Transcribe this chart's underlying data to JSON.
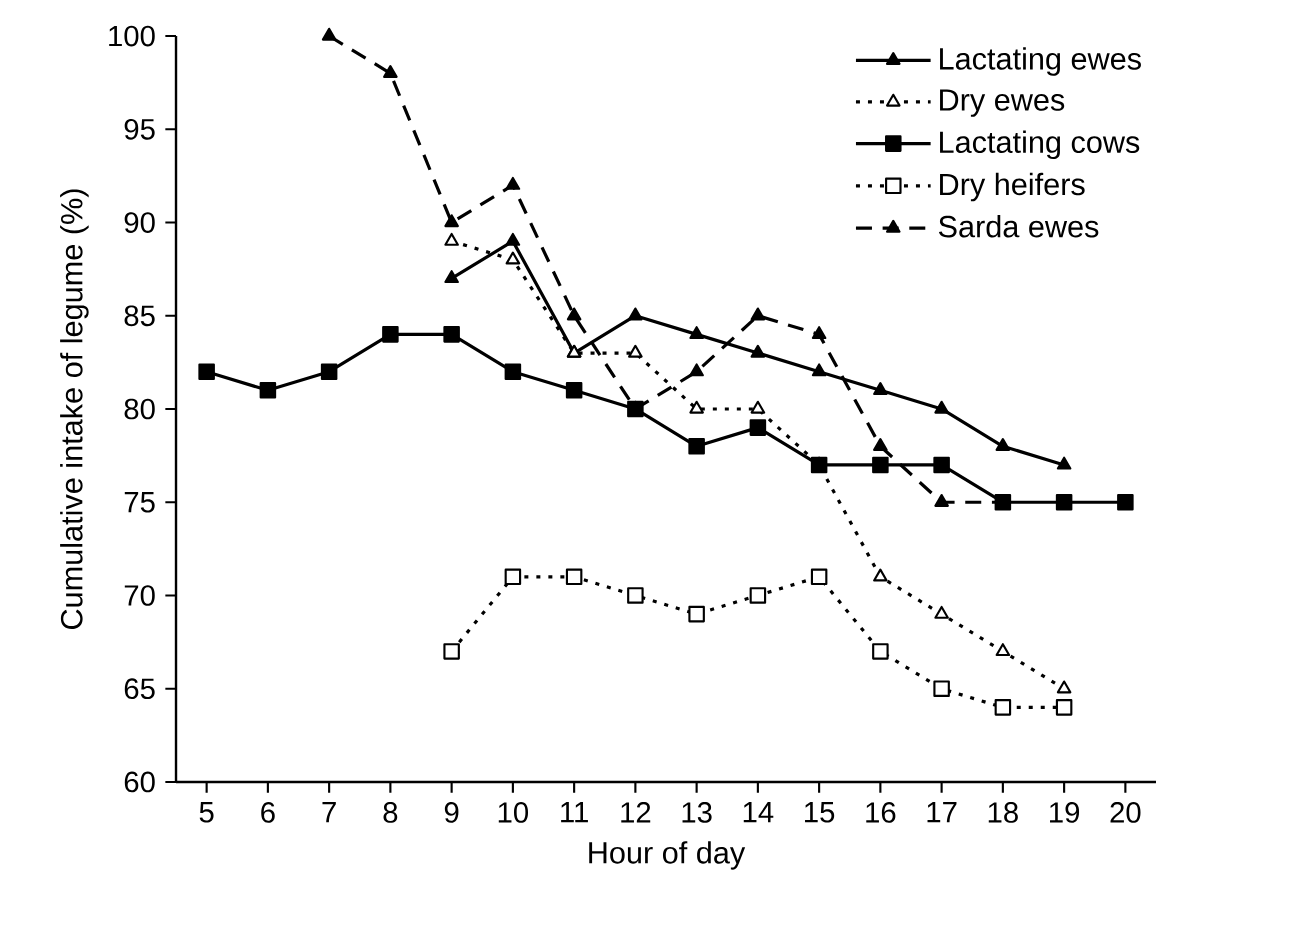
{
  "chart_data": {
    "type": "line",
    "xlabel": "Hour of day",
    "ylabel": "Cumulative intake of legume (%)",
    "categories": [
      "5",
      "6",
      "7",
      "8",
      "9",
      "10",
      "11",
      "12",
      "13",
      "14",
      "15",
      "16",
      "17",
      "18",
      "19",
      "20"
    ],
    "ylim": [
      60,
      100
    ],
    "yticks": [
      60,
      65,
      70,
      75,
      80,
      85,
      90,
      95,
      100
    ],
    "grid": false,
    "legend": "top right",
    "series": [
      {
        "name": "Lactating ewes",
        "color": "#000000",
        "marker": "triangle",
        "line_style": "solid",
        "values": [
          null,
          null,
          null,
          null,
          87,
          89,
          83,
          85,
          84,
          83,
          82,
          81,
          80,
          78,
          77,
          null
        ]
      },
      {
        "name": "Dry ewes",
        "color": "#000000",
        "marker": "triangle",
        "line_style": "dotted",
        "values": [
          null,
          null,
          null,
          null,
          89,
          88,
          83,
          83,
          80,
          80,
          77,
          71,
          69,
          67,
          65,
          null
        ]
      },
      {
        "name": "Lactating cows",
        "color": "#000000",
        "marker": "square",
        "line_style": "solid",
        "values": [
          82,
          81,
          82,
          84,
          84,
          82,
          81,
          80,
          78,
          79,
          77,
          77,
          77,
          75,
          75,
          75
        ]
      },
      {
        "name": "Dry heifers",
        "color": "#000000",
        "marker": "square",
        "line_style": "dotted",
        "values": [
          null,
          null,
          null,
          null,
          67,
          71,
          71,
          70,
          69,
          70,
          71,
          67,
          65,
          64,
          64,
          null
        ]
      },
      {
        "name": "Sarda ewes",
        "color": "#000000",
        "marker": "triangle",
        "line_style": "dashed",
        "values": [
          null,
          null,
          100,
          98,
          90,
          92,
          85,
          80,
          82,
          85,
          84,
          78,
          75,
          75,
          null,
          null
        ]
      }
    ]
  }
}
